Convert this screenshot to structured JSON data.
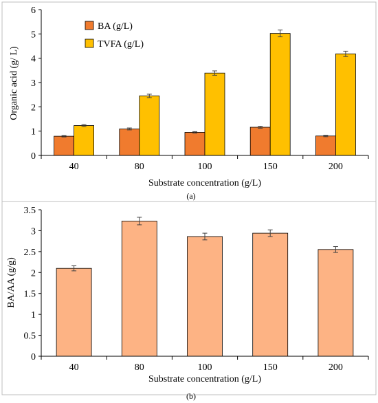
{
  "chart_data": [
    {
      "type": "bar",
      "panel_label": "(a)",
      "categories": [
        "40",
        "80",
        "100",
        "150",
        "200"
      ],
      "series": [
        {
          "name": "BA (g/L)",
          "color": "#F07B2E",
          "values": [
            0.79,
            1.09,
            0.95,
            1.16,
            0.8
          ],
          "errors": [
            0.03,
            0.04,
            0.03,
            0.04,
            0.03
          ]
        },
        {
          "name": "TVFA (g/L)",
          "color": "#FFC000",
          "values": [
            1.23,
            2.45,
            3.39,
            5.02,
            4.18
          ],
          "errors": [
            0.04,
            0.07,
            0.09,
            0.14,
            0.11
          ]
        }
      ],
      "xlabel": "Substrate concentration (g/L)",
      "ylabel": "Organic acid (g/ L)",
      "ylim": [
        0,
        6
      ],
      "yticks": [
        "0",
        "1",
        "2",
        "3",
        "4",
        "5",
        "6"
      ],
      "grid": false,
      "legend": "top-left"
    },
    {
      "type": "bar",
      "panel_label": "(b)",
      "categories": [
        "40",
        "80",
        "100",
        "150",
        "200"
      ],
      "series": [
        {
          "color": "#FDB384",
          "values": [
            2.1,
            3.23,
            2.86,
            2.94,
            2.55
          ],
          "errors": [
            0.06,
            0.09,
            0.08,
            0.08,
            0.07
          ]
        }
      ],
      "xlabel": "Substrate concentration (g/L)",
      "ylabel": "BA/AA (g/g)",
      "ylim": [
        0,
        3.5
      ],
      "yticks": [
        "0",
        "0.5",
        "1",
        "1.5",
        "2",
        "2.5",
        "3",
        "3.5"
      ],
      "grid": false
    }
  ]
}
